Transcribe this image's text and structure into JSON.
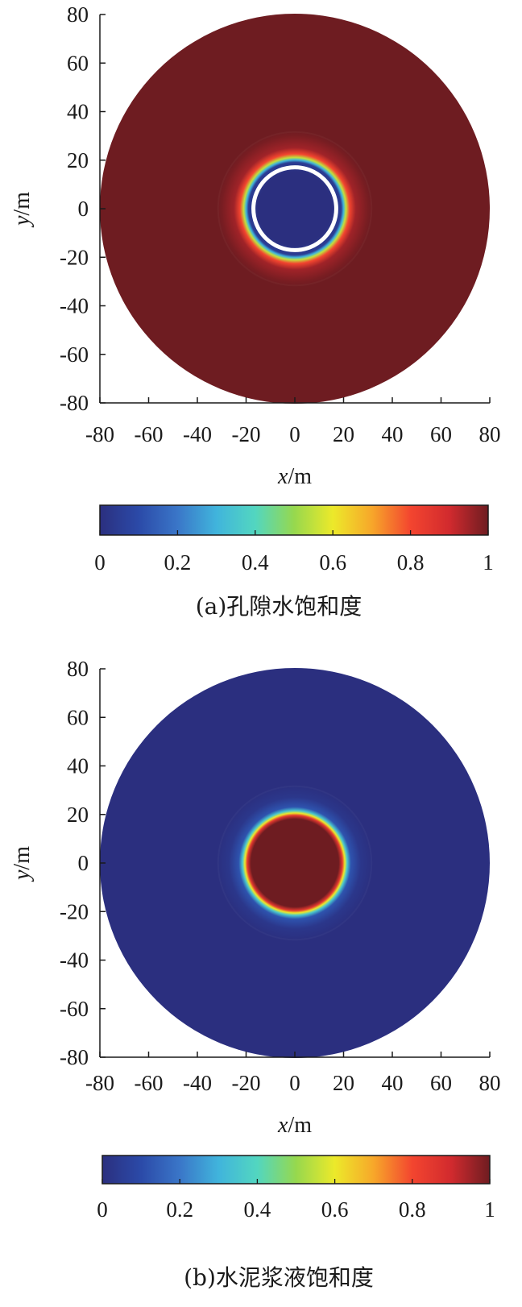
{
  "colormap": [
    "#2b2f7f",
    "#2b4aa8",
    "#3a76c8",
    "#40b4dc",
    "#52d6c0",
    "#96d84e",
    "#ece92a",
    "#f7a72a",
    "#f3452f",
    "#d12a2e",
    "#6e1c21"
  ],
  "chart_data": [
    {
      "id": "a",
      "type": "heatmap",
      "caption": "(a)孔隙水饱和度",
      "xlabel_var": "x",
      "xlabel_unit": "/m",
      "ylabel_var": "y",
      "ylabel_unit": "/m",
      "xlim": [
        -80,
        80
      ],
      "ylim": [
        -80,
        80
      ],
      "x_ticks": [
        "-80",
        "-60",
        "-40",
        "-20",
        "0",
        "20",
        "40",
        "60",
        "80"
      ],
      "y_ticks": [
        "80",
        "60",
        "40",
        "20",
        "0",
        "-20",
        "-40",
        "-60",
        "-80"
      ],
      "colorbar_ticks": [
        "0",
        "0.2",
        "0.4",
        "0.6",
        "0.8",
        "1"
      ],
      "colorbar_range": [
        0,
        1
      ],
      "domain_radius": 80,
      "radial_profile": [
        {
          "r": 0,
          "value": 0.0
        },
        {
          "r": 15,
          "value": 0.0
        },
        {
          "r": 19,
          "value": 0.05
        },
        {
          "r": 20,
          "value": 0.3
        },
        {
          "r": 21,
          "value": 0.55
        },
        {
          "r": 22.5,
          "value": 0.8
        },
        {
          "r": 25,
          "value": 0.95
        },
        {
          "r": 30,
          "value": 0.99
        },
        {
          "r": 32,
          "value": 1.0
        },
        {
          "r": 80,
          "value": 1.0
        }
      ],
      "ring_gap": {
        "r_inner": 15.5,
        "r_outer": 18.5
      }
    },
    {
      "id": "b",
      "type": "heatmap",
      "caption": "(b)水泥浆液饱和度",
      "xlabel_var": "x",
      "xlabel_unit": "/m",
      "ylabel_var": "y",
      "ylabel_unit": "/m",
      "xlim": [
        -80,
        80
      ],
      "ylim": [
        -80,
        80
      ],
      "x_ticks": [
        "-80",
        "-60",
        "-40",
        "-20",
        "0",
        "20",
        "40",
        "60",
        "80"
      ],
      "y_ticks": [
        "80",
        "60",
        "40",
        "20",
        "0",
        "-20",
        "-40",
        "-60",
        "-80"
      ],
      "colorbar_ticks": [
        "0",
        "0.2",
        "0.4",
        "0.6",
        "0.8",
        "1"
      ],
      "colorbar_range": [
        0,
        1
      ],
      "domain_radius": 80,
      "radial_profile": [
        {
          "r": 0,
          "value": 1.0
        },
        {
          "r": 18,
          "value": 1.0
        },
        {
          "r": 19.5,
          "value": 0.85
        },
        {
          "r": 20.5,
          "value": 0.6
        },
        {
          "r": 21.5,
          "value": 0.35
        },
        {
          "r": 23,
          "value": 0.12
        },
        {
          "r": 27,
          "value": 0.03
        },
        {
          "r": 32,
          "value": 0.0
        },
        {
          "r": 80,
          "value": 0.0
        }
      ]
    }
  ]
}
